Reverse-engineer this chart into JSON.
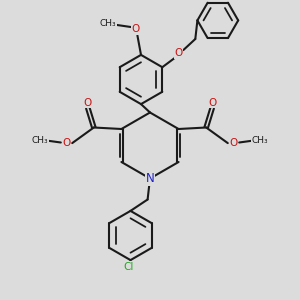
{
  "bg_color": "#dcdcdc",
  "bond_color": "#1a1a1a",
  "n_color": "#2222cc",
  "o_color": "#cc1111",
  "cl_color": "#22aa22",
  "lw": 1.5,
  "dbo": 0.06,
  "xlim": [
    0,
    10
  ],
  "ylim": [
    0,
    10
  ]
}
